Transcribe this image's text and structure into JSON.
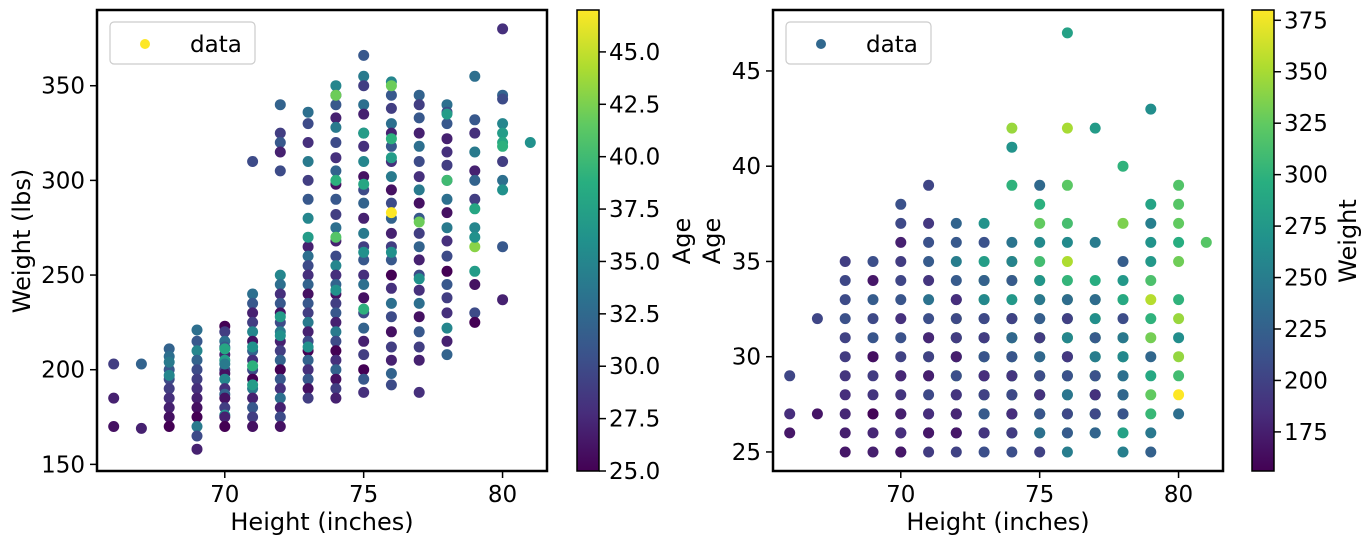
{
  "chart_data": [
    {
      "type": "scatter",
      "title": "",
      "xlabel": "Height (inches)",
      "ylabel": "Weight (lbs)",
      "xlim": [
        65.4,
        81.6
      ],
      "ylim": [
        146.5,
        390
      ],
      "xticks": [
        70,
        75,
        80
      ],
      "yticks": [
        150,
        200,
        250,
        300,
        350
      ],
      "legend": {
        "label": "data",
        "location": "upper-left",
        "marker_color": "#fde725"
      },
      "colorbar": {
        "label": "Age",
        "min": 25,
        "max": 47,
        "colormap": "viridis",
        "ticks": [
          "25.0",
          "27.5",
          "30.0",
          "32.5",
          "35.0",
          "37.5",
          "40.0",
          "42.5",
          "45.0"
        ]
      },
      "color_by": "age",
      "x_key": "height",
      "y_key": "weight"
    },
    {
      "type": "scatter",
      "title": "",
      "xlabel": "Height (inches)",
      "ylabel": "Age",
      "xlim": [
        65.4,
        81.6
      ],
      "ylim": [
        24,
        48.2
      ],
      "xticks": [
        70,
        75,
        80
      ],
      "yticks": [
        25,
        30,
        35,
        40,
        45
      ],
      "legend": {
        "label": "data",
        "location": "upper-left",
        "marker_color": "#31688e"
      },
      "colorbar": {
        "label": "Weight",
        "min": 156,
        "max": 380,
        "colormap": "viridis",
        "ticks": [
          "175",
          "200",
          "225",
          "250",
          "275",
          "300",
          "325",
          "350",
          "375"
        ]
      },
      "color_by": "weight",
      "x_key": "height",
      "y_key": "age"
    }
  ],
  "players": [
    [
      66,
      203,
      29
    ],
    [
      66,
      185,
      27
    ],
    [
      66,
      170,
      26
    ],
    [
      67,
      203,
      32
    ],
    [
      67,
      169,
      27
    ],
    [
      68,
      211,
      32
    ],
    [
      68,
      207,
      33
    ],
    [
      68,
      200,
      31
    ],
    [
      68,
      195,
      30
    ],
    [
      68,
      190,
      29
    ],
    [
      68,
      185,
      28
    ],
    [
      68,
      180,
      27
    ],
    [
      68,
      175,
      26
    ],
    [
      68,
      170,
      25
    ],
    [
      68,
      204,
      34
    ],
    [
      68,
      197,
      35
    ],
    [
      69,
      221,
      33
    ],
    [
      69,
      215,
      31
    ],
    [
      69,
      210,
      35
    ],
    [
      69,
      205,
      32
    ],
    [
      69,
      200,
      30
    ],
    [
      69,
      195,
      29
    ],
    [
      69,
      190,
      28
    ],
    [
      69,
      185,
      27
    ],
    [
      69,
      180,
      26
    ],
    [
      69,
      175,
      25
    ],
    [
      69,
      170,
      34
    ],
    [
      69,
      165,
      30
    ],
    [
      69,
      158,
      27
    ],
    [
      70,
      223,
      25
    ],
    [
      70,
      220,
      29
    ],
    [
      70,
      215,
      33
    ],
    [
      70,
      212,
      31
    ],
    [
      70,
      208,
      27
    ],
    [
      70,
      205,
      37
    ],
    [
      70,
      200,
      30
    ],
    [
      70,
      198,
      26
    ],
    [
      70,
      195,
      35
    ],
    [
      70,
      190,
      28
    ],
    [
      70,
      187,
      32
    ],
    [
      70,
      185,
      26
    ],
    [
      70,
      180,
      29
    ],
    [
      70,
      176,
      36
    ],
    [
      70,
      175,
      27
    ],
    [
      70,
      170,
      25
    ],
    [
      70,
      211,
      38
    ],
    [
      70,
      203,
      34
    ],
    [
      71,
      310,
      30
    ],
    [
      71,
      240,
      33
    ],
    [
      71,
      235,
      31
    ],
    [
      71,
      230,
      27
    ],
    [
      71,
      225,
      29
    ],
    [
      71,
      220,
      35
    ],
    [
      71,
      215,
      26
    ],
    [
      71,
      210,
      32
    ],
    [
      71,
      205,
      28
    ],
    [
      71,
      200,
      30
    ],
    [
      71,
      195,
      25
    ],
    [
      71,
      190,
      34
    ],
    [
      71,
      185,
      27
    ],
    [
      71,
      180,
      31
    ],
    [
      71,
      175,
      29
    ],
    [
      71,
      170,
      26
    ],
    [
      71,
      212,
      36
    ],
    [
      71,
      202,
      39
    ],
    [
      71,
      192,
      37
    ],
    [
      72,
      340,
      32
    ],
    [
      72,
      325,
      29
    ],
    [
      72,
      320,
      31
    ],
    [
      72,
      315,
      27
    ],
    [
      72,
      305,
      30
    ],
    [
      72,
      250,
      35
    ],
    [
      72,
      245,
      33
    ],
    [
      72,
      240,
      28
    ],
    [
      72,
      235,
      31
    ],
    [
      72,
      230,
      26
    ],
    [
      72,
      225,
      30
    ],
    [
      72,
      220,
      34
    ],
    [
      72,
      215,
      27
    ],
    [
      72,
      210,
      29
    ],
    [
      72,
      205,
      32
    ],
    [
      72,
      200,
      25
    ],
    [
      72,
      195,
      31
    ],
    [
      72,
      190,
      28
    ],
    [
      72,
      185,
      33
    ],
    [
      72,
      180,
      27
    ],
    [
      72,
      175,
      30
    ],
    [
      72,
      170,
      26
    ],
    [
      72,
      228,
      37
    ],
    [
      72,
      218,
      36
    ],
    [
      73,
      336,
      33
    ],
    [
      73,
      330,
      30
    ],
    [
      73,
      320,
      28
    ],
    [
      73,
      310,
      34
    ],
    [
      73,
      300,
      29
    ],
    [
      73,
      290,
      31
    ],
    [
      73,
      280,
      35
    ],
    [
      73,
      265,
      27
    ],
    [
      73,
      260,
      33
    ],
    [
      73,
      255,
      30
    ],
    [
      73,
      250,
      28
    ],
    [
      73,
      245,
      32
    ],
    [
      73,
      240,
      26
    ],
    [
      73,
      235,
      31
    ],
    [
      73,
      230,
      29
    ],
    [
      73,
      225,
      34
    ],
    [
      73,
      220,
      27
    ],
    [
      73,
      215,
      30
    ],
    [
      73,
      210,
      25
    ],
    [
      73,
      205,
      32
    ],
    [
      73,
      200,
      28
    ],
    [
      73,
      195,
      31
    ],
    [
      73,
      190,
      26
    ],
    [
      73,
      185,
      29
    ],
    [
      73,
      270,
      37
    ],
    [
      73,
      212,
      36
    ],
    [
      74,
      350,
      35
    ],
    [
      74,
      345,
      29
    ],
    [
      74,
      340,
      31
    ],
    [
      74,
      333,
      27
    ],
    [
      74,
      328,
      34
    ],
    [
      74,
      320,
      30
    ],
    [
      74,
      312,
      28
    ],
    [
      74,
      305,
      32
    ],
    [
      74,
      298,
      26
    ],
    [
      74,
      290,
      31
    ],
    [
      74,
      282,
      29
    ],
    [
      74,
      275,
      33
    ],
    [
      74,
      268,
      27
    ],
    [
      74,
      260,
      30
    ],
    [
      74,
      255,
      35
    ],
    [
      74,
      250,
      28
    ],
    [
      74,
      245,
      32
    ],
    [
      74,
      240,
      26
    ],
    [
      74,
      235,
      29
    ],
    [
      74,
      230,
      31
    ],
    [
      74,
      225,
      27
    ],
    [
      74,
      220,
      34
    ],
    [
      74,
      215,
      30
    ],
    [
      74,
      210,
      25
    ],
    [
      74,
      205,
      28
    ],
    [
      74,
      200,
      32
    ],
    [
      74,
      195,
      26
    ],
    [
      74,
      190,
      29
    ],
    [
      74,
      185,
      27
    ],
    [
      74,
      345,
      42
    ],
    [
      74,
      300,
      39
    ],
    [
      74,
      270,
      41
    ],
    [
      74,
      242,
      36
    ],
    [
      75,
      366,
      31
    ],
    [
      75,
      355,
      34
    ],
    [
      75,
      350,
      29
    ],
    [
      75,
      340,
      33
    ],
    [
      75,
      335,
      27
    ],
    [
      75,
      325,
      31
    ],
    [
      75,
      318,
      28
    ],
    [
      75,
      310,
      35
    ],
    [
      75,
      302,
      26
    ],
    [
      75,
      295,
      30
    ],
    [
      75,
      288,
      32
    ],
    [
      75,
      280,
      27
    ],
    [
      75,
      272,
      34
    ],
    [
      75,
      265,
      29
    ],
    [
      75,
      258,
      31
    ],
    [
      75,
      250,
      28
    ],
    [
      75,
      245,
      33
    ],
    [
      75,
      238,
      26
    ],
    [
      75,
      230,
      30
    ],
    [
      75,
      222,
      32
    ],
    [
      75,
      215,
      27
    ],
    [
      75,
      208,
      29
    ],
    [
      75,
      200,
      25
    ],
    [
      75,
      195,
      31
    ],
    [
      75,
      188,
      28
    ],
    [
      75,
      298,
      38
    ],
    [
      75,
      262,
      36
    ],
    [
      75,
      232,
      39
    ],
    [
      75,
      325,
      37
    ],
    [
      76,
      352,
      35
    ],
    [
      76,
      345,
      31
    ],
    [
      76,
      338,
      29
    ],
    [
      76,
      330,
      33
    ],
    [
      76,
      325,
      27
    ],
    [
      76,
      318,
      31
    ],
    [
      76,
      310,
      28
    ],
    [
      76,
      302,
      34
    ],
    [
      76,
      295,
      26
    ],
    [
      76,
      288,
      30
    ],
    [
      76,
      280,
      32
    ],
    [
      76,
      272,
      27
    ],
    [
      76,
      265,
      29
    ],
    [
      76,
      258,
      31
    ],
    [
      76,
      250,
      25
    ],
    [
      76,
      243,
      28
    ],
    [
      76,
      235,
      33
    ],
    [
      76,
      228,
      30
    ],
    [
      76,
      220,
      26
    ],
    [
      76,
      212,
      29
    ],
    [
      76,
      205,
      27
    ],
    [
      76,
      198,
      32
    ],
    [
      76,
      192,
      30
    ],
    [
      76,
      350,
      42
    ],
    [
      76,
      322,
      39
    ],
    [
      76,
      283,
      47
    ],
    [
      76,
      312,
      37
    ],
    [
      76,
      262,
      36
    ],
    [
      77,
      345,
      32
    ],
    [
      77,
      340,
      29
    ],
    [
      77,
      333,
      31
    ],
    [
      77,
      325,
      27
    ],
    [
      77,
      318,
      33
    ],
    [
      77,
      310,
      30
    ],
    [
      77,
      302,
      28
    ],
    [
      77,
      295,
      34
    ],
    [
      77,
      288,
      26
    ],
    [
      77,
      280,
      31
    ],
    [
      77,
      272,
      29
    ],
    [
      77,
      265,
      32
    ],
    [
      77,
      258,
      27
    ],
    [
      77,
      250,
      30
    ],
    [
      77,
      242,
      28
    ],
    [
      77,
      235,
      33
    ],
    [
      77,
      228,
      26
    ],
    [
      77,
      220,
      31
    ],
    [
      77,
      212,
      29
    ],
    [
      77,
      205,
      27
    ],
    [
      77,
      188,
      28
    ],
    [
      77,
      278,
      42
    ],
    [
      77,
      248,
      36
    ],
    [
      78,
      340,
      33
    ],
    [
      78,
      336,
      30
    ],
    [
      78,
      330,
      31
    ],
    [
      78,
      322,
      27
    ],
    [
      78,
      315,
      28
    ],
    [
      78,
      308,
      29
    ],
    [
      78,
      300,
      30
    ],
    [
      78,
      290,
      33
    ],
    [
      78,
      283,
      26
    ],
    [
      78,
      275,
      34
    ],
    [
      78,
      268,
      28
    ],
    [
      78,
      260,
      30
    ],
    [
      78,
      252,
      25
    ],
    [
      78,
      245,
      31
    ],
    [
      78,
      238,
      29
    ],
    [
      78,
      230,
      28
    ],
    [
      78,
      222,
      35
    ],
    [
      78,
      215,
      27
    ],
    [
      78,
      208,
      32
    ],
    [
      78,
      300,
      40
    ],
    [
      78,
      335,
      37
    ],
    [
      79,
      355,
      33
    ],
    [
      79,
      332,
      31
    ],
    [
      79,
      325,
      28
    ],
    [
      79,
      315,
      34
    ],
    [
      79,
      305,
      27
    ],
    [
      79,
      300,
      32
    ],
    [
      79,
      290,
      29
    ],
    [
      79,
      275,
      35
    ],
    [
      79,
      265,
      43
    ],
    [
      79,
      252,
      37
    ],
    [
      79,
      245,
      26
    ],
    [
      79,
      230,
      30
    ],
    [
      79,
      225,
      25
    ],
    [
      79,
      285,
      38
    ],
    [
      79,
      270,
      36
    ],
    [
      80,
      380,
      28
    ],
    [
      80,
      345,
      32
    ],
    [
      80,
      343,
      30
    ],
    [
      80,
      330,
      35
    ],
    [
      80,
      325,
      37
    ],
    [
      80,
      320,
      38
    ],
    [
      80,
      310,
      29
    ],
    [
      80,
      300,
      33
    ],
    [
      80,
      295,
      36
    ],
    [
      80,
      265,
      31
    ],
    [
      80,
      237,
      27
    ],
    [
      80,
      318,
      39
    ],
    [
      81,
      320,
      36
    ]
  ]
}
